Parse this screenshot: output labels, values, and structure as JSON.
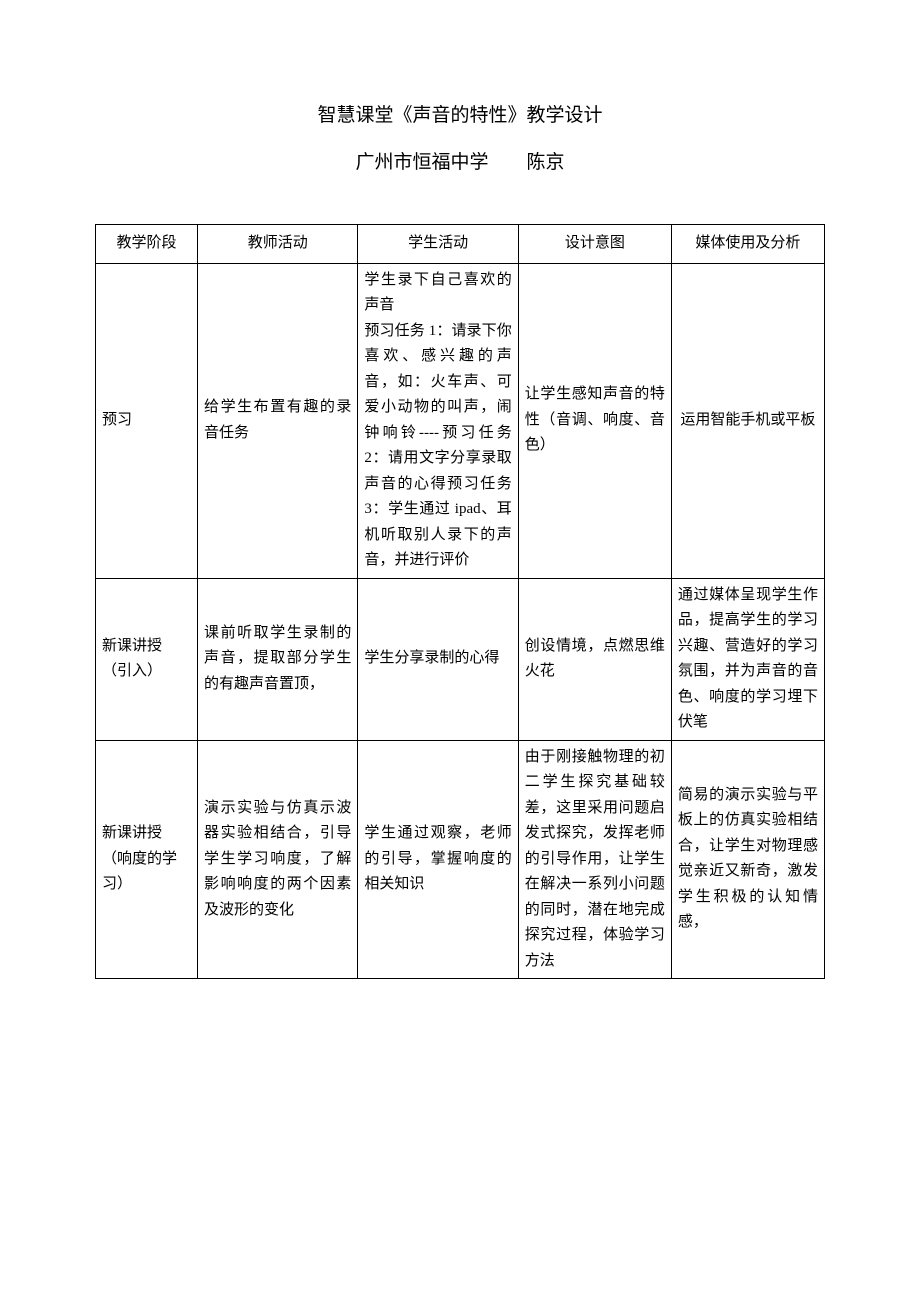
{
  "document": {
    "title": "智慧课堂《声音的特性》教学设计",
    "subtitle": "广州市恒福中学　　陈京"
  },
  "table": {
    "headers": {
      "stage": "教学阶段",
      "teacher": "教师活动",
      "student": "学生活动",
      "intent": "设计意图",
      "media": "媒体使用及分析"
    },
    "rows": [
      {
        "stage": "预习",
        "teacher": "给学生布置有趣的录音任务",
        "student": "学生录下自己喜欢的声音\n预习任务 1：请录下你喜欢、感兴趣的声音，如：火车声、可爱小动物的叫声，闹钟响铃----预习任务 2：请用文字分享录取声音的心得预习任务 3：学生通过 ipad、耳机听取别人录下的声音，并进行评价",
        "intent": "让学生感知声音的特性（音调、响度、音色）",
        "media": "运用智能手机或平板"
      },
      {
        "stage": "新课讲授（引入）",
        "teacher": "课前听取学生录制的声音，提取部分学生的有趣声音置顶，",
        "student": "学生分享录制的心得",
        "intent": "创设情境，点燃思维火花",
        "media": "通过媒体呈现学生作品，提高学生的学习兴趣、营造好的学习氛围，并为声音的音色、响度的学习埋下伏笔"
      },
      {
        "stage": "新课讲授（响度的学习）",
        "teacher": "演示实验与仿真示波器实验相结合，引导学生学习响度，了解影响响度的两个因素及波形的变化",
        "student": "学生通过观察，老师的引导，掌握响度的相关知识",
        "intent": "由于刚接触物理的初二学生探究基础较差，这里采用问题启发式探究，发挥老师的引导作用，让学生在解决一系列小问题的同时，潜在地完成探究过程，体验学习方法",
        "media": "简易的演示实验与平板上的仿真实验相结合，让学生对物理感觉亲近又新奇，激发学生积极的认知情感，"
      }
    ]
  },
  "styling": {
    "background_color": "#ffffff",
    "text_color": "#000000",
    "border_color": "#000000",
    "title_fontsize": 19,
    "body_fontsize": 15,
    "font_family": "SimSun"
  }
}
